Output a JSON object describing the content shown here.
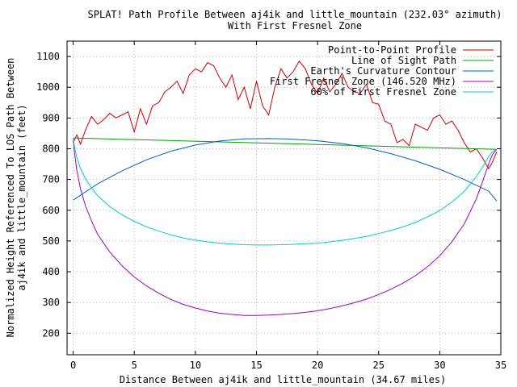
{
  "chart_data": {
    "type": "line",
    "title": "SPLAT! Path Profile Between aj4ik and little_mountain (232.03° azimuth)",
    "subtitle": "With First Fresnel Zone",
    "xlabel": "Distance Between aj4ik and little_mountain (34.67 miles)",
    "ylabel": [
      "Normalized Height Referenced To LOS Path Between",
      "aj4ik and little_mountain (feet)"
    ],
    "xlim": [
      -0.5,
      35
    ],
    "ylim": [
      130,
      1150
    ],
    "x_ticks": [
      0,
      5,
      10,
      15,
      20,
      25,
      30,
      35
    ],
    "y_ticks": [
      200,
      300,
      400,
      500,
      600,
      700,
      800,
      900,
      1000,
      1100
    ],
    "grid": true,
    "legend_position": "top-right",
    "series": [
      {
        "name": "Point-to-Point Profile",
        "color": "#cc0000",
        "x": [
          0,
          0.3,
          0.6,
          1.0,
          1.5,
          2.0,
          2.5,
          3.0,
          3.5,
          4.0,
          4.5,
          5.0,
          5.5,
          6.0,
          6.5,
          7.0,
          7.5,
          8.0,
          8.5,
          9.0,
          9.5,
          10.0,
          10.5,
          11.0,
          11.5,
          12.0,
          12.5,
          13.0,
          13.5,
          14.0,
          14.5,
          15.0,
          15.5,
          16.0,
          16.5,
          17.0,
          17.5,
          18.0,
          18.5,
          19.0,
          19.5,
          20.0,
          20.5,
          21.0,
          21.5,
          22.0,
          22.5,
          23.0,
          23.5,
          24.0,
          24.5,
          25.0,
          25.5,
          26.0,
          26.5,
          27.0,
          27.5,
          28.0,
          28.5,
          29.0,
          29.5,
          30.0,
          30.5,
          31.0,
          31.5,
          32.0,
          32.5,
          33.0,
          33.5,
          34.0,
          34.3,
          34.67
        ],
        "y": [
          820,
          845,
          815,
          860,
          905,
          880,
          895,
          915,
          900,
          910,
          920,
          855,
          930,
          880,
          940,
          950,
          985,
          1000,
          1020,
          980,
          1040,
          1060,
          1050,
          1080,
          1070,
          1030,
          1000,
          1040,
          960,
          1000,
          930,
          1020,
          940,
          910,
          1000,
          1060,
          1030,
          1050,
          1085,
          1060,
          1010,
          980,
          1030,
          985,
          1010,
          1045,
          1000,
          985,
          980,
          1010,
          950,
          945,
          890,
          880,
          820,
          830,
          810,
          880,
          870,
          860,
          900,
          910,
          880,
          890,
          860,
          820,
          790,
          800,
          770,
          735,
          755,
          790
        ]
      },
      {
        "name": "Line of Sight Path",
        "color": "#00a000",
        "x": [
          0,
          34.67
        ],
        "y": [
          835,
          798
        ]
      },
      {
        "name": "Earth's Curvature Contour",
        "color": "#0060c0",
        "x": [
          0,
          2,
          4,
          6,
          8,
          10,
          12,
          14,
          16,
          17.335,
          18,
          20,
          22,
          24,
          26,
          28,
          30,
          32,
          34,
          34.67
        ],
        "y": [
          633,
          686,
          728,
          764,
          792,
          812,
          825,
          832,
          833,
          832,
          831,
          826,
          817,
          803,
          784,
          761,
          733,
          700,
          662,
          630
        ]
      },
      {
        "name": "First Fresnel Zone (146.520 MHz)",
        "color": "#a000c0",
        "x": [
          0,
          0.1,
          0.3,
          0.6,
          1,
          1.5,
          2,
          3,
          4,
          5,
          6,
          7,
          8,
          9,
          10,
          11,
          12,
          13,
          14,
          15,
          16,
          17,
          18,
          19,
          20,
          21,
          22,
          23,
          24,
          25,
          26,
          27,
          28,
          29,
          30,
          31,
          32,
          33,
          33.5,
          34,
          34.3,
          34.5,
          34.67
        ],
        "y": [
          835,
          790,
          730,
          670,
          615,
          565,
          522,
          464,
          419,
          383,
          354,
          330,
          310,
          294,
          282,
          272,
          265,
          261,
          258,
          258,
          259,
          261,
          264,
          268,
          273,
          280,
          289,
          299,
          311,
          326,
          343,
          363,
          387,
          416,
          452,
          498,
          555,
          637,
          693,
          750,
          780,
          790,
          798
        ]
      },
      {
        "name": "60% of First Fresnel Zone",
        "color": "#00cccc",
        "x": [
          0,
          0.1,
          0.3,
          0.6,
          1,
          1.5,
          2,
          3,
          4,
          5,
          6,
          7,
          8,
          9,
          10,
          11,
          12,
          13,
          14,
          15,
          16,
          17,
          18,
          19,
          20,
          21,
          22,
          23,
          24,
          25,
          26,
          27,
          28,
          29,
          30,
          31,
          32,
          33,
          33.5,
          34,
          34.3,
          34.5,
          34.67
        ],
        "y": [
          835,
          808,
          772,
          736,
          703,
          673,
          647,
          612,
          585,
          564,
          546,
          532,
          520,
          510,
          503,
          497,
          493,
          490,
          488,
          487,
          487,
          488,
          489,
          491,
          493,
          497,
          502,
          508,
          515,
          524,
          534,
          546,
          560,
          578,
          599,
          627,
          661,
          710,
          740,
          775,
          790,
          795,
          798
        ]
      }
    ]
  }
}
